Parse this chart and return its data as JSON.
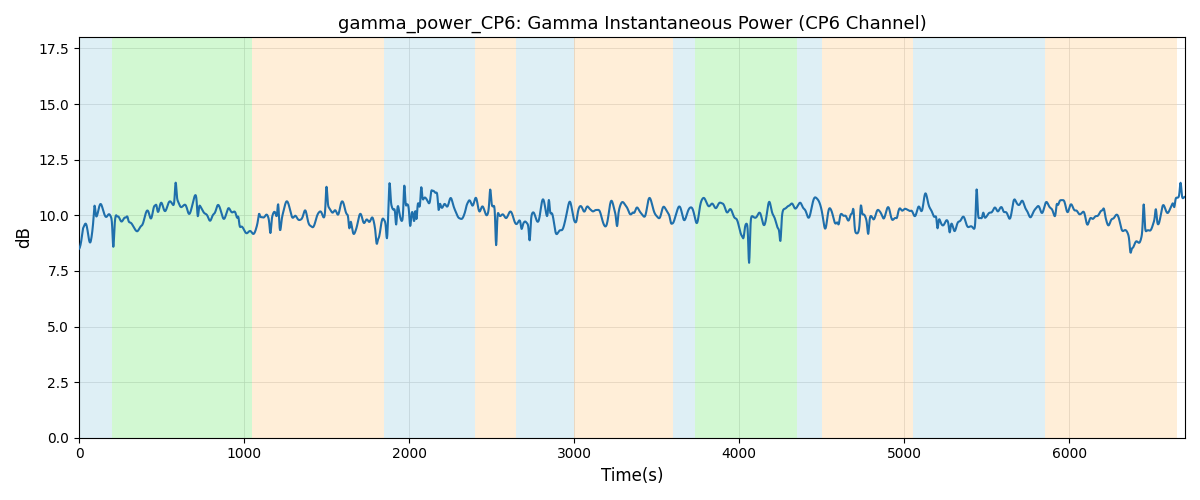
{
  "title": "gamma_power_CP6: Gamma Instantaneous Power (CP6 Channel)",
  "xlabel": "Time(s)",
  "ylabel": "dB",
  "ylim": [
    0,
    18
  ],
  "line_color": "#1f6fab",
  "line_width": 1.5,
  "background_color": "#ffffff",
  "grid_color": "#cccccc",
  "bands": [
    {
      "xmin": 0,
      "xmax": 200,
      "color": "#add8e6",
      "alpha": 0.4
    },
    {
      "xmin": 200,
      "xmax": 1050,
      "color": "#90ee90",
      "alpha": 0.4
    },
    {
      "xmin": 1050,
      "xmax": 1850,
      "color": "#ffd59e",
      "alpha": 0.4
    },
    {
      "xmin": 1850,
      "xmax": 2400,
      "color": "#add8e6",
      "alpha": 0.4
    },
    {
      "xmin": 2400,
      "xmax": 2650,
      "color": "#ffd59e",
      "alpha": 0.4
    },
    {
      "xmin": 2650,
      "xmax": 3000,
      "color": "#add8e6",
      "alpha": 0.4
    },
    {
      "xmin": 3000,
      "xmax": 3600,
      "color": "#ffd59e",
      "alpha": 0.4
    },
    {
      "xmin": 3600,
      "xmax": 3730,
      "color": "#add8e6",
      "alpha": 0.4
    },
    {
      "xmin": 3730,
      "xmax": 4350,
      "color": "#90ee90",
      "alpha": 0.4
    },
    {
      "xmin": 4350,
      "xmax": 4500,
      "color": "#add8e6",
      "alpha": 0.4
    },
    {
      "xmin": 4500,
      "xmax": 5050,
      "color": "#ffd59e",
      "alpha": 0.4
    },
    {
      "xmin": 5050,
      "xmax": 5850,
      "color": "#add8e6",
      "alpha": 0.4
    },
    {
      "xmin": 5850,
      "xmax": 6650,
      "color": "#ffd59e",
      "alpha": 0.4
    }
  ],
  "seed": 42,
  "t_start": 0,
  "t_end": 6700,
  "num_points": 3000
}
